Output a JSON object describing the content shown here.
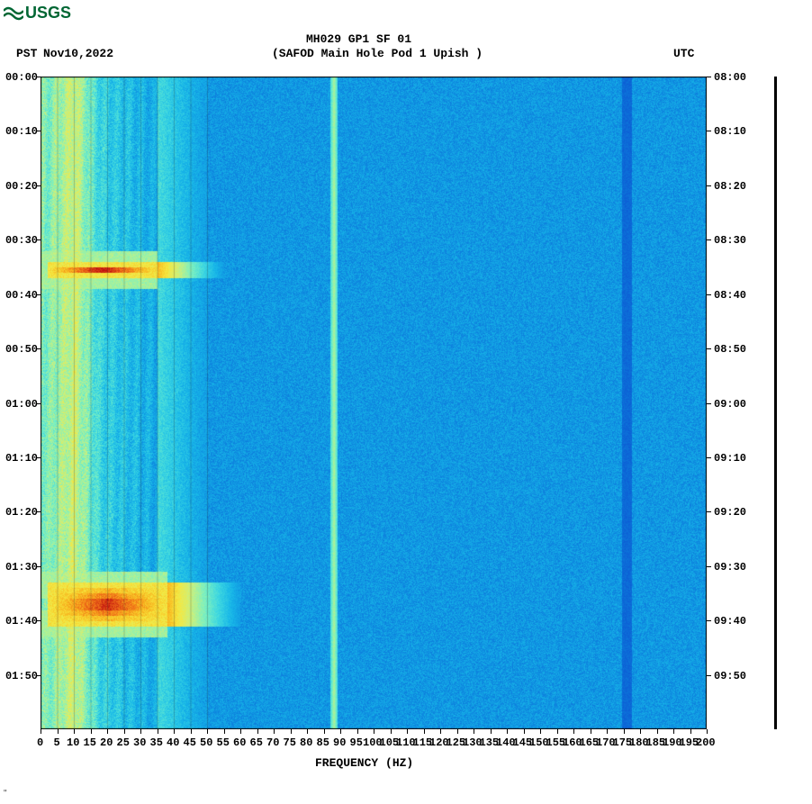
{
  "logo_text": "USGS",
  "header": {
    "tz_left": "PST",
    "date": "Nov10,2022",
    "title1": "MH029 GP1 SF 01",
    "title2": "(SAFOD Main Hole Pod 1 Upish )",
    "tz_right": "UTC"
  },
  "spectrogram": {
    "type": "heatmap",
    "x_axis": {
      "label": "FREQUENCY (HZ)",
      "min": 0,
      "max": 200,
      "tick_step": 5,
      "label_fontsize": 13
    },
    "y_axis_left": {
      "ticks": [
        "00:00",
        "00:10",
        "00:20",
        "00:30",
        "00:40",
        "00:50",
        "01:00",
        "01:10",
        "01:20",
        "01:30",
        "01:40",
        "01:50"
      ]
    },
    "y_axis_right": {
      "ticks": [
        "08:00",
        "08:10",
        "08:20",
        "08:30",
        "08:40",
        "08:50",
        "09:00",
        "09:10",
        "09:20",
        "09:30",
        "09:40",
        "09:50"
      ]
    },
    "time_rows": 120,
    "colormap": {
      "stops": [
        [
          0.0,
          "#0a2c8a"
        ],
        [
          0.08,
          "#0a3bb0"
        ],
        [
          0.15,
          "#0c5bd4"
        ],
        [
          0.25,
          "#0e8be0"
        ],
        [
          0.35,
          "#17b6e8"
        ],
        [
          0.45,
          "#3fd8e0"
        ],
        [
          0.55,
          "#7cf0c0"
        ],
        [
          0.65,
          "#c8f080"
        ],
        [
          0.75,
          "#f5e840"
        ],
        [
          0.83,
          "#f8b820"
        ],
        [
          0.9,
          "#f07018"
        ],
        [
          1.0,
          "#c01010"
        ]
      ]
    },
    "background_intensity": 0.28,
    "lowfreq_band": {
      "freq_max_hz": 35,
      "base_intensity": 0.62,
      "inner_peak_freq": 10,
      "inner_peak_intensity": 0.78
    },
    "vertical_lines": [
      {
        "freq_hz": 88,
        "intensity": 0.62,
        "width_hz": 1.0
      },
      {
        "freq_hz": 176,
        "intensity": 0.18,
        "width_hz": 1.5,
        "dark": true
      }
    ],
    "grid_lines_freq_hz": [
      5,
      10,
      15,
      20,
      25,
      30,
      35,
      40,
      45,
      50
    ],
    "events": [
      {
        "time_row_start": 34,
        "time_row_end": 36,
        "freq_start_hz": 2,
        "freq_end_hz": 35,
        "peak_intensity": 1.0,
        "tail_end_hz": 55
      },
      {
        "time_row_start": 93,
        "time_row_end": 100,
        "freq_start_hz": 2,
        "freq_end_hz": 38,
        "peak_intensity": 1.0,
        "tail_end_hz": 60
      }
    ],
    "noise_amplitude": 0.1
  },
  "colors": {
    "text": "#000000",
    "logo": "#006633",
    "background": "#ffffff"
  },
  "credit": "\""
}
